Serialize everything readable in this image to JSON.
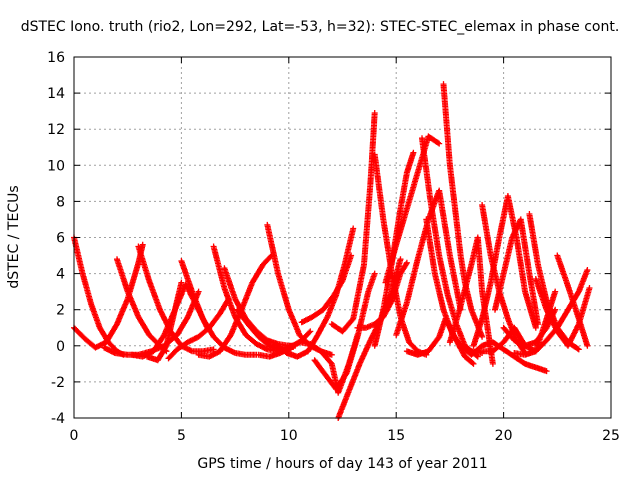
{
  "chart_data": {
    "type": "scatter",
    "title": "dSTEC Iono. truth (rio2, Lon=292, Lat=-53, h=32): STEC-STEC_elemax in phase cont.",
    "xlabel": "GPS time / hours of day 143 of year 2011",
    "ylabel": "dSTEC  / TECUs",
    "xlim": [
      0,
      25
    ],
    "ylim": [
      -4,
      16
    ],
    "xticks": [
      0,
      5,
      10,
      15,
      20,
      25
    ],
    "yticks": [
      -4,
      -2,
      0,
      2,
      4,
      6,
      8,
      10,
      12,
      14,
      16
    ],
    "grid": true,
    "marker": "plus",
    "color": "#ff0000",
    "series": [
      {
        "x": [
          0.0,
          0.4,
          0.8,
          1.2,
          1.6,
          2.0,
          2.3
        ],
        "y": [
          6.0,
          4.0,
          2.3,
          1.0,
          0.2,
          -0.3,
          -0.5
        ]
      },
      {
        "x": [
          0.0,
          0.5,
          1.0,
          1.5,
          2.0,
          2.5,
          3.0,
          3.2
        ],
        "y": [
          1.0,
          0.4,
          -0.1,
          0.2,
          1.2,
          2.6,
          4.6,
          5.6
        ]
      },
      {
        "x": [
          1.4,
          1.9,
          2.5,
          3.0,
          3.6,
          4.2,
          4.8,
          5.3,
          5.8
        ],
        "y": [
          -0.1,
          -0.4,
          -0.5,
          -0.5,
          -0.3,
          0.0,
          0.6,
          1.6,
          3.0
        ]
      },
      {
        "x": [
          2.0,
          2.5,
          3.0,
          3.5,
          4.0,
          4.3
        ],
        "y": [
          4.8,
          3.0,
          1.6,
          0.6,
          0.0,
          -0.3
        ]
      },
      {
        "x": [
          3.0,
          3.5,
          4.0,
          4.5,
          5.0,
          5.5,
          6.0,
          6.5
        ],
        "y": [
          5.5,
          3.6,
          2.0,
          0.8,
          0.0,
          -0.3,
          -0.3,
          -0.2
        ]
      },
      {
        "x": [
          2.7,
          3.2,
          3.7,
          4.2,
          4.7,
          5.0
        ],
        "y": [
          -0.5,
          -0.6,
          -0.3,
          0.6,
          2.0,
          3.5
        ]
      },
      {
        "x": [
          3.4,
          3.9,
          4.3,
          4.7,
          5.2,
          5.8,
          6.2
        ],
        "y": [
          -0.6,
          -0.8,
          0.0,
          2.0,
          3.4,
          2.0,
          1.0
        ]
      },
      {
        "x": [
          4.4,
          4.8,
          5.3,
          5.8,
          6.3,
          6.8,
          7.2
        ],
        "y": [
          -0.7,
          -0.2,
          0.2,
          0.5,
          1.0,
          1.8,
          2.6
        ]
      },
      {
        "x": [
          5.0,
          5.5,
          6.0,
          6.5,
          7.0,
          7.5,
          8.0,
          8.5
        ],
        "y": [
          4.7,
          3.0,
          1.5,
          0.5,
          -0.1,
          -0.4,
          -0.5,
          -0.5
        ]
      },
      {
        "x": [
          5.8,
          6.3,
          6.8,
          7.3,
          7.8,
          8.3,
          8.8,
          9.2
        ],
        "y": [
          -0.5,
          -0.6,
          -0.3,
          0.6,
          2.0,
          3.5,
          4.5,
          5.0
        ]
      },
      {
        "x": [
          6.5,
          7.0,
          7.5,
          8.0,
          8.5,
          9.0,
          9.5
        ],
        "y": [
          5.5,
          3.2,
          1.6,
          0.6,
          0.1,
          -0.2,
          -0.3
        ]
      },
      {
        "x": [
          7.0,
          7.5,
          8.0,
          8.5,
          9.0,
          9.5,
          10.0,
          10.3
        ],
        "y": [
          4.3,
          2.6,
          1.5,
          0.8,
          0.3,
          0.1,
          0.0,
          0.0
        ]
      },
      {
        "x": [
          7.6,
          8.1,
          8.6,
          9.1,
          9.6,
          10.1
        ],
        "y": [
          2.0,
          1.2,
          0.5,
          0.0,
          -0.2,
          -0.2
        ]
      },
      {
        "x": [
          8.6,
          9.1,
          9.6,
          10.1,
          10.6,
          11.0
        ],
        "y": [
          -0.5,
          -0.6,
          -0.4,
          -0.1,
          0.3,
          0.8
        ]
      },
      {
        "x": [
          9.0,
          9.5,
          10.0,
          10.5,
          11.0,
          11.5,
          12.0
        ],
        "y": [
          6.7,
          4.0,
          2.0,
          0.6,
          0.0,
          -0.3,
          -0.5
        ]
      },
      {
        "x": [
          9.4,
          9.9,
          10.4,
          10.9,
          11.3,
          11.8,
          12.2,
          12.6,
          13.0
        ],
        "y": [
          0.1,
          -0.4,
          -0.6,
          -0.3,
          0.5,
          1.6,
          2.8,
          4.5,
          6.5
        ]
      },
      {
        "x": [
          10.0,
          10.5,
          11.0,
          11.5,
          12.0,
          12.3,
          12.8,
          13.2
        ],
        "y": [
          -0.1,
          0.2,
          0.1,
          -0.3,
          -1.0,
          -2.6,
          -1.0,
          0.6
        ]
      },
      {
        "x": [
          10.6,
          11.1,
          11.6,
          12.1,
          12.5,
          12.9
        ],
        "y": [
          1.3,
          1.6,
          2.0,
          2.8,
          3.6,
          5.0
        ]
      },
      {
        "x": [
          11.2,
          11.7,
          12.2,
          12.7,
          13.2,
          13.7,
          14.0
        ],
        "y": [
          -0.8,
          -1.6,
          -2.4,
          -1.5,
          0.5,
          3.0,
          4.0
        ]
      },
      {
        "x": [
          12.0,
          12.5,
          13.0,
          13.5,
          13.8,
          14.0
        ],
        "y": [
          1.2,
          0.8,
          1.5,
          4.5,
          9.0,
          12.9
        ]
      },
      {
        "x": [
          12.3,
          12.8,
          13.3,
          13.8,
          14.3,
          14.8,
          15.2
        ],
        "y": [
          -4.0,
          -2.5,
          -1.0,
          0.3,
          1.5,
          3.0,
          4.8
        ]
      },
      {
        "x": [
          13.2,
          13.6,
          14.0,
          14.4,
          14.8,
          15.2,
          15.5
        ],
        "y": [
          1.0,
          1.0,
          1.2,
          1.6,
          2.5,
          4.0,
          4.6
        ]
      },
      {
        "x": [
          14.0,
          14.4,
          14.8,
          15.2,
          15.6,
          16.0,
          16.4
        ],
        "y": [
          10.6,
          7.0,
          4.0,
          1.6,
          0.2,
          -0.3,
          -0.5
        ]
      },
      {
        "x": [
          14.0,
          14.4,
          14.8,
          15.2,
          15.5,
          15.8
        ],
        "y": [
          0.0,
          2.0,
          4.6,
          7.6,
          9.6,
          10.7
        ]
      },
      {
        "x": [
          14.5,
          15.0,
          15.5,
          16.0,
          16.5,
          17.0
        ],
        "y": [
          3.5,
          5.6,
          7.6,
          9.6,
          11.6,
          11.2
        ]
      },
      {
        "x": [
          15.0,
          15.5,
          16.0,
          16.5,
          17.0,
          17.5,
          18.0
        ],
        "y": [
          0.6,
          2.4,
          4.8,
          7.0,
          8.6,
          5.0,
          2.0
        ]
      },
      {
        "x": [
          16.2,
          16.6,
          17.0,
          17.4,
          17.8,
          18.2,
          18.8
        ],
        "y": [
          11.5,
          8.0,
          5.0,
          2.8,
          1.2,
          0.0,
          -0.6
        ]
      },
      {
        "x": [
          16.4,
          16.8,
          17.2,
          17.6,
          18.0,
          18.5,
          19.0
        ],
        "y": [
          7.0,
          4.0,
          2.0,
          0.7,
          0.0,
          -0.3,
          -0.4
        ]
      },
      {
        "x": [
          15.5,
          16.0,
          16.5,
          17.0,
          17.3,
          17.8,
          18.2,
          18.6
        ],
        "y": [
          -0.3,
          -0.5,
          -0.3,
          0.5,
          1.5,
          0.3,
          -0.6,
          -1.0
        ]
      },
      {
        "x": [
          17.2,
          17.5,
          17.8,
          18.0,
          18.2,
          18.5,
          19.0
        ],
        "y": [
          14.5,
          10.0,
          7.0,
          5.0,
          3.5,
          2.0,
          0.5
        ]
      },
      {
        "x": [
          17.5,
          18.0,
          18.5,
          18.8,
          19.0,
          19.5
        ],
        "y": [
          0.2,
          2.2,
          4.5,
          6.0,
          3.0,
          -1.0
        ]
      },
      {
        "x": [
          18.0,
          18.5,
          19.0,
          19.5,
          20.0,
          20.5,
          21.0,
          21.5,
          22.0
        ],
        "y": [
          0.0,
          -0.5,
          0.0,
          0.2,
          -0.2,
          -0.6,
          -1.0,
          -1.2,
          -1.4
        ]
      },
      {
        "x": [
          19.0,
          19.4,
          19.8,
          20.2,
          20.6,
          21.0
        ],
        "y": [
          7.8,
          5.0,
          3.0,
          1.5,
          0.3,
          -0.4
        ]
      },
      {
        "x": [
          18.6,
          19.0,
          19.4,
          19.8,
          20.2,
          20.6,
          21.0,
          21.5
        ],
        "y": [
          0.0,
          1.5,
          3.5,
          6.0,
          8.3,
          6.0,
          3.0,
          1.0
        ]
      },
      {
        "x": [
          19.6,
          20.0,
          20.4,
          20.8,
          21.2,
          21.6
        ],
        "y": [
          2.0,
          4.0,
          6.0,
          7.0,
          4.0,
          1.2
        ]
      },
      {
        "x": [
          19.0,
          19.5,
          20.0,
          20.5,
          21.0,
          21.5,
          22.0,
          22.4
        ],
        "y": [
          -0.3,
          -0.3,
          0.2,
          1.0,
          0.0,
          -0.3,
          1.5,
          3.0
        ]
      },
      {
        "x": [
          20.0,
          20.5,
          21.0,
          21.5,
          22.0,
          22.4
        ],
        "y": [
          1.0,
          0.3,
          0.0,
          0.2,
          1.0,
          2.0
        ]
      },
      {
        "x": [
          21.2,
          21.6,
          22.0,
          22.5,
          23.0,
          23.5
        ],
        "y": [
          7.3,
          4.5,
          2.5,
          1.0,
          0.2,
          -0.2
        ]
      },
      {
        "x": [
          20.5,
          21.0,
          21.5,
          22.0,
          22.5,
          23.0,
          23.5,
          23.9
        ],
        "y": [
          -0.4,
          -0.5,
          -0.3,
          0.3,
          1.0,
          2.0,
          3.0,
          4.2
        ]
      },
      {
        "x": [
          22.5,
          23.0,
          23.5,
          23.9
        ],
        "y": [
          5.0,
          3.3,
          1.5,
          0.0
        ]
      },
      {
        "x": [
          21.5,
          22.0,
          22.5,
          23.0,
          23.5,
          24.0
        ],
        "y": [
          3.7,
          2.0,
          0.8,
          0.0,
          1.2,
          3.2
        ]
      }
    ]
  }
}
